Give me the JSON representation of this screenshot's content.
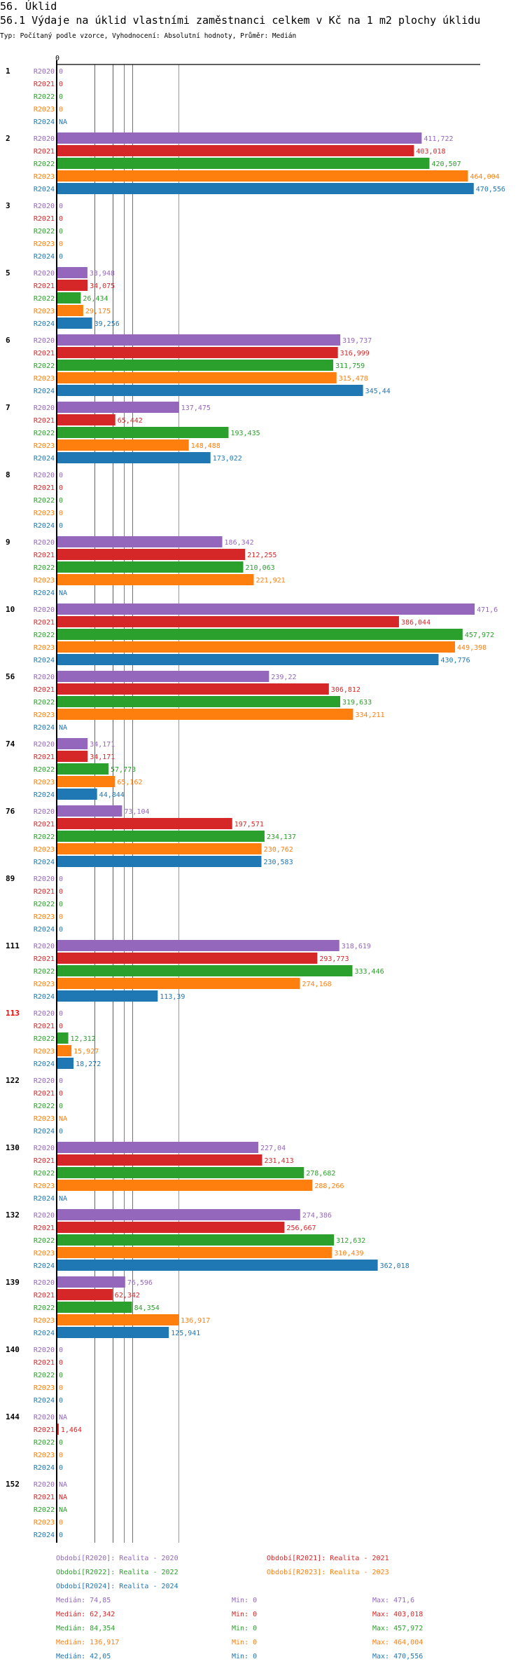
{
  "header": {
    "section_title": "56. Úklid",
    "chart_title": "56.1 Výdaje na úklid vlastními zaměstnanci celkem v Kč na 1 m2 plochy úklidu",
    "subtitle": "Typ: Počítaný podle vzorce, Vyhodnocení: Absolutní hodnoty, Průměr: Medián"
  },
  "chart_data": {
    "type": "bar",
    "orientation": "horizontal",
    "title": "56.1 Výdaje na úklid vlastními zaměstnanci celkem v Kč na 1 m2 plochy úklidu",
    "xlabel": "",
    "ylabel": "",
    "x_tick_labels": [
      "0"
    ],
    "xlim": [
      0,
      480
    ],
    "series_names": [
      "R2020",
      "R2021",
      "R2022",
      "R2023",
      "R2024"
    ],
    "series_colors": [
      "#9467bd",
      "#d62728",
      "#2ca02c",
      "#ff7f0e",
      "#1f77b4"
    ],
    "groups": [
      {
        "label": "1",
        "highlight": false,
        "values": [
          0,
          0,
          0,
          0,
          null
        ],
        "labels": [
          "0",
          "0",
          "0",
          "0",
          "NA"
        ]
      },
      {
        "label": "2",
        "highlight": false,
        "values": [
          411.722,
          403.018,
          420.507,
          464.004,
          470.556
        ],
        "labels": [
          "411,722",
          "403,018",
          "420,507",
          "464,004",
          "470,556"
        ]
      },
      {
        "label": "3",
        "highlight": false,
        "values": [
          0,
          0,
          0,
          0,
          0
        ],
        "labels": [
          "0",
          "0",
          "0",
          "0",
          "0"
        ]
      },
      {
        "label": "5",
        "highlight": false,
        "values": [
          33.948,
          34.075,
          26.434,
          29.175,
          39.256
        ],
        "labels": [
          "33,948",
          "34,075",
          "26,434",
          "29,175",
          "39,256"
        ]
      },
      {
        "label": "6",
        "highlight": false,
        "values": [
          319.737,
          316.999,
          311.759,
          315.478,
          345.44
        ],
        "labels": [
          "319,737",
          "316,999",
          "311,759",
          "315,478",
          "345,44"
        ]
      },
      {
        "label": "7",
        "highlight": false,
        "values": [
          137.475,
          65.442,
          193.435,
          148.488,
          173.022
        ],
        "labels": [
          "137,475",
          "65,442",
          "193,435",
          "148,488",
          "173,022"
        ]
      },
      {
        "label": "8",
        "highlight": false,
        "values": [
          0,
          0,
          0,
          0,
          0
        ],
        "labels": [
          "0",
          "0",
          "0",
          "0",
          "0"
        ]
      },
      {
        "label": "9",
        "highlight": false,
        "values": [
          186.342,
          212.255,
          210.063,
          221.921,
          null
        ],
        "labels": [
          "186,342",
          "212,255",
          "210,063",
          "221,921",
          "NA"
        ]
      },
      {
        "label": "10",
        "highlight": false,
        "values": [
          471.6,
          386.044,
          457.972,
          449.398,
          430.776
        ],
        "labels": [
          "471,6",
          "386,044",
          "457,972",
          "449,398",
          "430,776"
        ]
      },
      {
        "label": "56",
        "highlight": false,
        "values": [
          239.22,
          306.812,
          319.633,
          334.211,
          null
        ],
        "labels": [
          "239,22",
          "306,812",
          "319,633",
          "334,211",
          "NA"
        ]
      },
      {
        "label": "74",
        "highlight": false,
        "values": [
          34.171,
          34.171,
          57.773,
          65.162,
          44.844
        ],
        "labels": [
          "34,171",
          "34,171",
          "57,773",
          "65,162",
          "44,844"
        ]
      },
      {
        "label": "76",
        "highlight": false,
        "values": [
          73.104,
          197.571,
          234.137,
          230.762,
          230.583
        ],
        "labels": [
          "73,104",
          "197,571",
          "234,137",
          "230,762",
          "230,583"
        ]
      },
      {
        "label": "89",
        "highlight": false,
        "values": [
          0,
          0,
          0,
          0,
          0
        ],
        "labels": [
          "0",
          "0",
          "0",
          "0",
          "0"
        ]
      },
      {
        "label": "111",
        "highlight": false,
        "values": [
          318.619,
          293.773,
          333.446,
          274.168,
          113.39
        ],
        "labels": [
          "318,619",
          "293,773",
          "333,446",
          "274,168",
          "113,39"
        ]
      },
      {
        "label": "113",
        "highlight": true,
        "values": [
          0,
          0,
          12.312,
          15.927,
          18.272
        ],
        "labels": [
          "0",
          "0",
          "12,312",
          "15,927",
          "18,272"
        ]
      },
      {
        "label": "122",
        "highlight": false,
        "values": [
          0,
          0,
          0,
          null,
          0
        ],
        "labels": [
          "0",
          "0",
          "0",
          "NA",
          "0"
        ]
      },
      {
        "label": "130",
        "highlight": false,
        "values": [
          227.04,
          231.413,
          278.682,
          288.266,
          null
        ],
        "labels": [
          "227,04",
          "231,413",
          "278,682",
          "288,266",
          "NA"
        ]
      },
      {
        "label": "132",
        "highlight": false,
        "values": [
          274.386,
          256.667,
          312.632,
          310.439,
          362.018
        ],
        "labels": [
          "274,386",
          "256,667",
          "312,632",
          "310,439",
          "362,018"
        ]
      },
      {
        "label": "139",
        "highlight": false,
        "values": [
          76.596,
          62.342,
          84.354,
          136.917,
          125.941
        ],
        "labels": [
          "76,596",
          "62,342",
          "84,354",
          "136,917",
          "125,941"
        ]
      },
      {
        "label": "140",
        "highlight": false,
        "values": [
          0,
          0,
          0,
          0,
          0
        ],
        "labels": [
          "0",
          "0",
          "0",
          "0",
          "0"
        ]
      },
      {
        "label": "144",
        "highlight": false,
        "values": [
          null,
          1.464,
          0,
          0,
          0
        ],
        "labels": [
          "NA",
          "1,464",
          "0",
          "0",
          "0"
        ]
      },
      {
        "label": "152",
        "highlight": false,
        "values": [
          null,
          null,
          null,
          0,
          0
        ],
        "labels": [
          "NA",
          "NA",
          "NA",
          "0",
          "0"
        ]
      }
    ],
    "reference_lines": [
      {
        "series": "R2020",
        "type": "median",
        "value": 74.85
      },
      {
        "series": "R2021",
        "type": "median",
        "value": 62.342
      },
      {
        "series": "R2022",
        "type": "median",
        "value": 84.354
      },
      {
        "series": "R2023",
        "type": "median",
        "value": 136.917
      },
      {
        "series": "R2024",
        "type": "median",
        "value": 42.05
      }
    ],
    "legend": [
      {
        "text": "Období[R2020]: Realita - 2020",
        "color": "#9467bd"
      },
      {
        "text": "Období[R2021]: Realita - 2021",
        "color": "#d62728"
      },
      {
        "text": "Období[R2022]: Realita - 2022",
        "color": "#2ca02c"
      },
      {
        "text": "Období[R2023]: Realita - 2023",
        "color": "#ff7f0e"
      },
      {
        "text": "Období[R2024]: Realita - 2024",
        "color": "#1f77b4"
      }
    ],
    "legend_placement": "bottom",
    "stats": [
      {
        "median": "Medián: 74,85",
        "min": "Min: 0",
        "max": "Max: 471,6",
        "color": "#9467bd"
      },
      {
        "median": "Medián: 62,342",
        "min": "Min: 0",
        "max": "Max: 403,018",
        "color": "#d62728"
      },
      {
        "median": "Medián: 84,354",
        "min": "Min: 0",
        "max": "Max: 457,972",
        "color": "#2ca02c"
      },
      {
        "median": "Medián: 136,917",
        "min": "Min: 0",
        "max": "Max: 464,004",
        "color": "#ff7f0e"
      },
      {
        "median": "Medián: 42,05",
        "min": "Min: 0",
        "max": "Max: 470,556",
        "color": "#1f77b4"
      }
    ],
    "highlight_color": "#ff0000"
  }
}
